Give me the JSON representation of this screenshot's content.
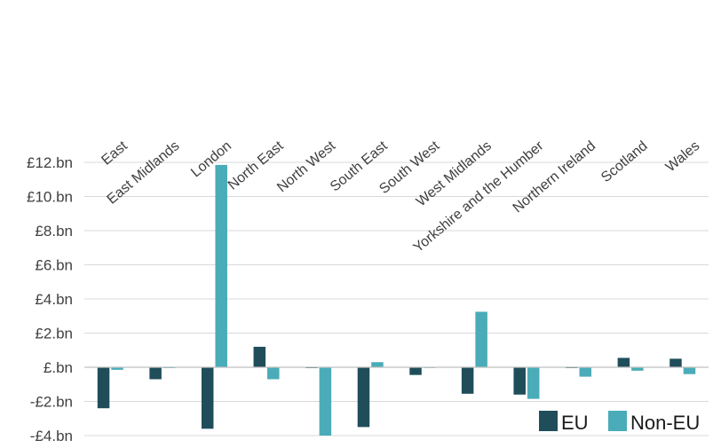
{
  "chart_data": {
    "type": "bar",
    "categories": [
      "East",
      "East Midlands",
      "London",
      "North East",
      "North West",
      "South East",
      "South West",
      "West Midlands",
      "Yorkshire and the Humber",
      "Northern Ireland",
      "Scotland",
      "Wales"
    ],
    "series": [
      {
        "name": "EU",
        "values": [
          -2.4,
          -0.7,
          -3.6,
          1.2,
          -0.05,
          -3.5,
          -0.45,
          -1.55,
          -1.6,
          -0.05,
          0.55,
          0.5
        ]
      },
      {
        "name": "Non-EU",
        "values": [
          -0.15,
          -0.05,
          11.85,
          -0.7,
          -4.0,
          0.3,
          0.0,
          3.25,
          -1.85,
          -0.55,
          -0.2,
          -0.4
        ]
      }
    ],
    "y_ticks": [
      "-£4.bn",
      "-£2.bn",
      "£.bn",
      "£2.bn",
      "£4.bn",
      "£6.bn",
      "£8.bn",
      "£10.bn",
      "£12.bn"
    ],
    "y_tick_values": [
      -4,
      -2,
      0,
      2,
      4,
      6,
      8,
      10,
      12
    ],
    "ylim": [
      -4,
      12
    ],
    "grid": true,
    "legend_position": "bottom-right",
    "colors": {
      "EU": "#1f4e5a",
      "Non-EU": "#4aacb8",
      "grid": "#d9d9d9",
      "axis": "#bfbfbf"
    }
  }
}
